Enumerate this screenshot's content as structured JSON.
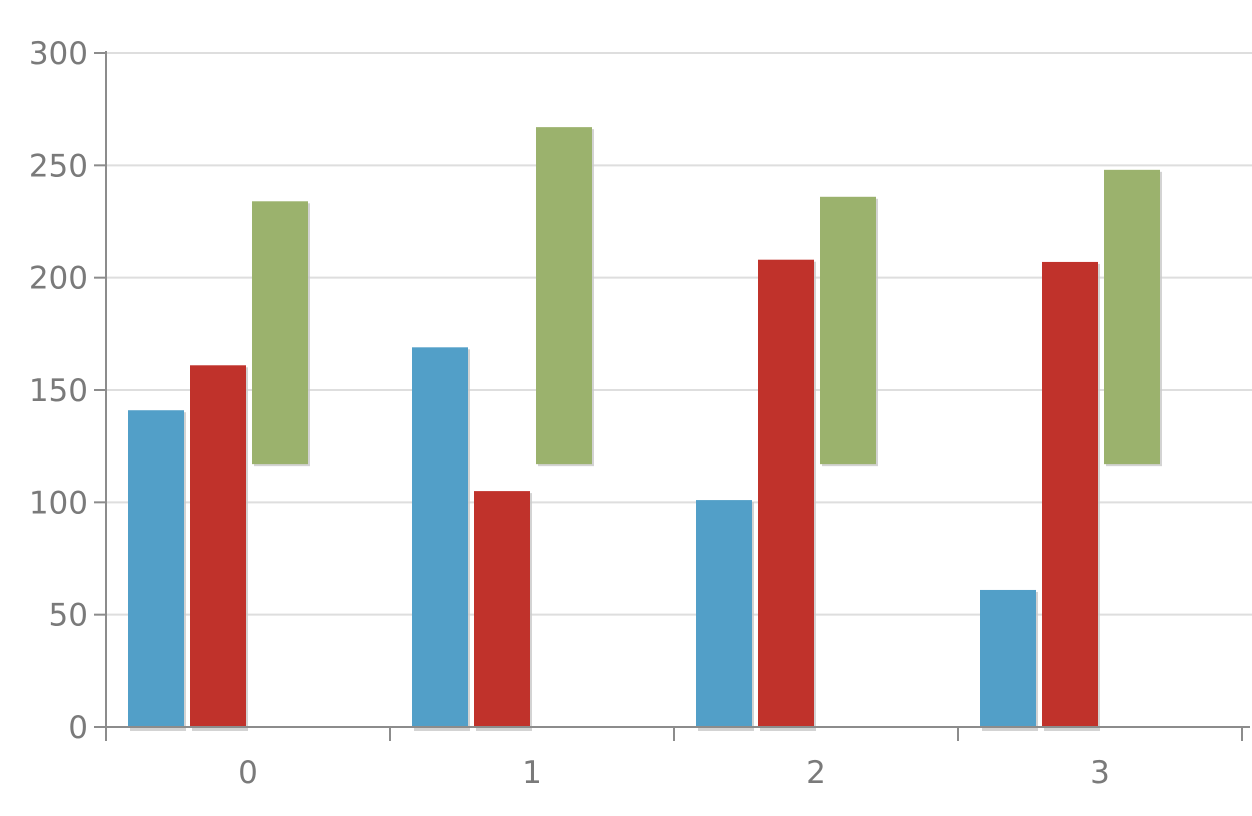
{
  "chart_data": {
    "type": "bar",
    "categories": [
      "0",
      "1",
      "2",
      "3"
    ],
    "ylim": [
      0,
      300
    ],
    "yticks": [
      "0",
      "50",
      "100",
      "150",
      "200",
      "250",
      "300"
    ],
    "grid": true,
    "legend": "none",
    "series": [
      {
        "color": "#529fc8",
        "values": [
          141,
          169,
          101,
          61
        ]
      },
      {
        "color": "#c0322b",
        "values": [
          161,
          105,
          208,
          207
        ]
      },
      {
        "color": "#9bb26d",
        "floating": true,
        "values": [
          {
            "low": 117,
            "high": 234
          },
          {
            "low": 117,
            "high": 267
          },
          {
            "low": 117,
            "high": 236
          },
          {
            "low": 117,
            "high": 248
          }
        ]
      }
    ],
    "colors": {
      "axis": "#8c8c8c",
      "grid": "#dedede",
      "tick_text": "#7a7a7a",
      "bar_shadow": "#c8c8c8"
    }
  }
}
